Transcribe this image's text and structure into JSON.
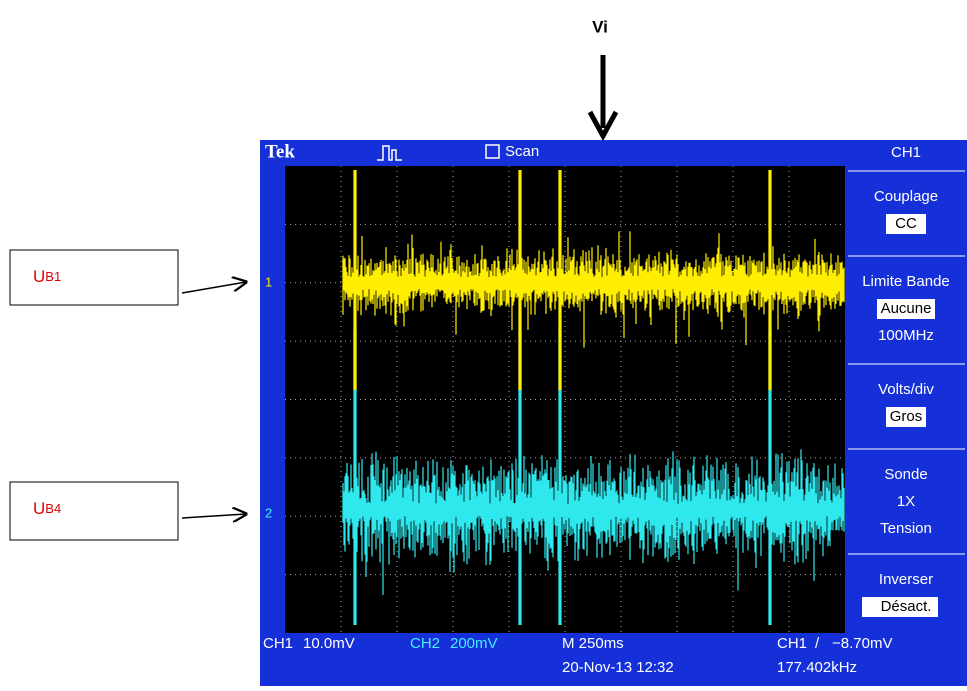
{
  "annotations": {
    "top": "Vi",
    "left": [
      {
        "letter": "U",
        "subscript": "B1"
      },
      {
        "letter": "U",
        "subscript": "B4"
      }
    ]
  },
  "scope": {
    "header": {
      "brand": "Tek",
      "mode": "Scan"
    },
    "markers": [
      "1",
      "2"
    ],
    "menu": {
      "title": "CH1",
      "items": [
        {
          "label": "Couplage",
          "values": [
            "CC"
          ]
        },
        {
          "label": "Limite Bande",
          "values": [
            "Aucune",
            "100MHz"
          ]
        },
        {
          "label": "Volts/div",
          "values": [
            "Gros"
          ]
        },
        {
          "label": "Sonde",
          "values": [
            "1X",
            "Tension"
          ]
        },
        {
          "label": "Inverser",
          "values": [
            "Désact."
          ]
        }
      ]
    },
    "footer": {
      "ch1": "CH1",
      "ch1_scale": "10.0mV",
      "ch2": "CH2",
      "ch2_scale": "200mV",
      "timebase": "M 250ms",
      "date": "20-Nov-13 12:32",
      "trigger_channel": "CH1",
      "trigger_symbol": "/",
      "trigger_level": "−8.70mV",
      "frequency": "177.402kHz"
    }
  }
}
